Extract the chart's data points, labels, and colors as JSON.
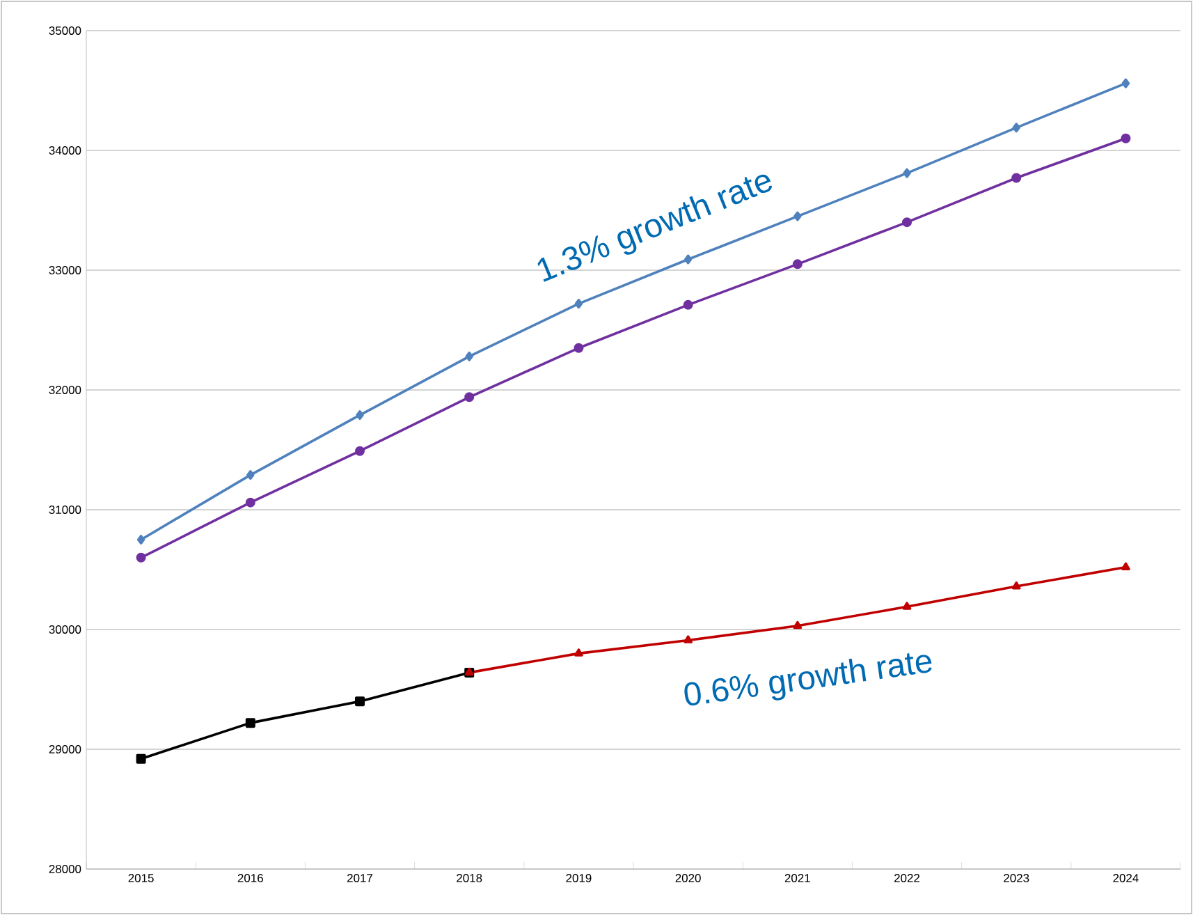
{
  "chart_data": {
    "type": "line",
    "categories": [
      "2015",
      "2016",
      "2017",
      "2018",
      "2019",
      "2020",
      "2021",
      "2022",
      "2023",
      "2024"
    ],
    "series": [
      {
        "color": "#4f81bd",
        "marker": "diamond",
        "values": [
          30750,
          31290,
          31790,
          32280,
          32720,
          33090,
          33450,
          33810,
          34190,
          34560
        ]
      },
      {
        "color": "#7030a0",
        "marker": "circle",
        "values": [
          30600,
          31060,
          31490,
          31940,
          32350,
          32710,
          33050,
          33400,
          33770,
          34100
        ]
      },
      {
        "color": "#000000",
        "marker": "square",
        "values": [
          28920,
          29220,
          29400,
          29640,
          null,
          null,
          null,
          null,
          null,
          null
        ]
      },
      {
        "color": "#c00000",
        "marker": "triangle",
        "values": [
          null,
          null,
          null,
          29640,
          29800,
          29910,
          30030,
          30190,
          30360,
          30520
        ]
      }
    ],
    "ylim": [
      28000,
      35000
    ],
    "yticks": [
      28000,
      29000,
      30000,
      31000,
      32000,
      33000,
      34000,
      35000
    ],
    "grid": "y",
    "annotations": [
      "1.3% growth rate",
      "0.6% growth rate"
    ]
  }
}
